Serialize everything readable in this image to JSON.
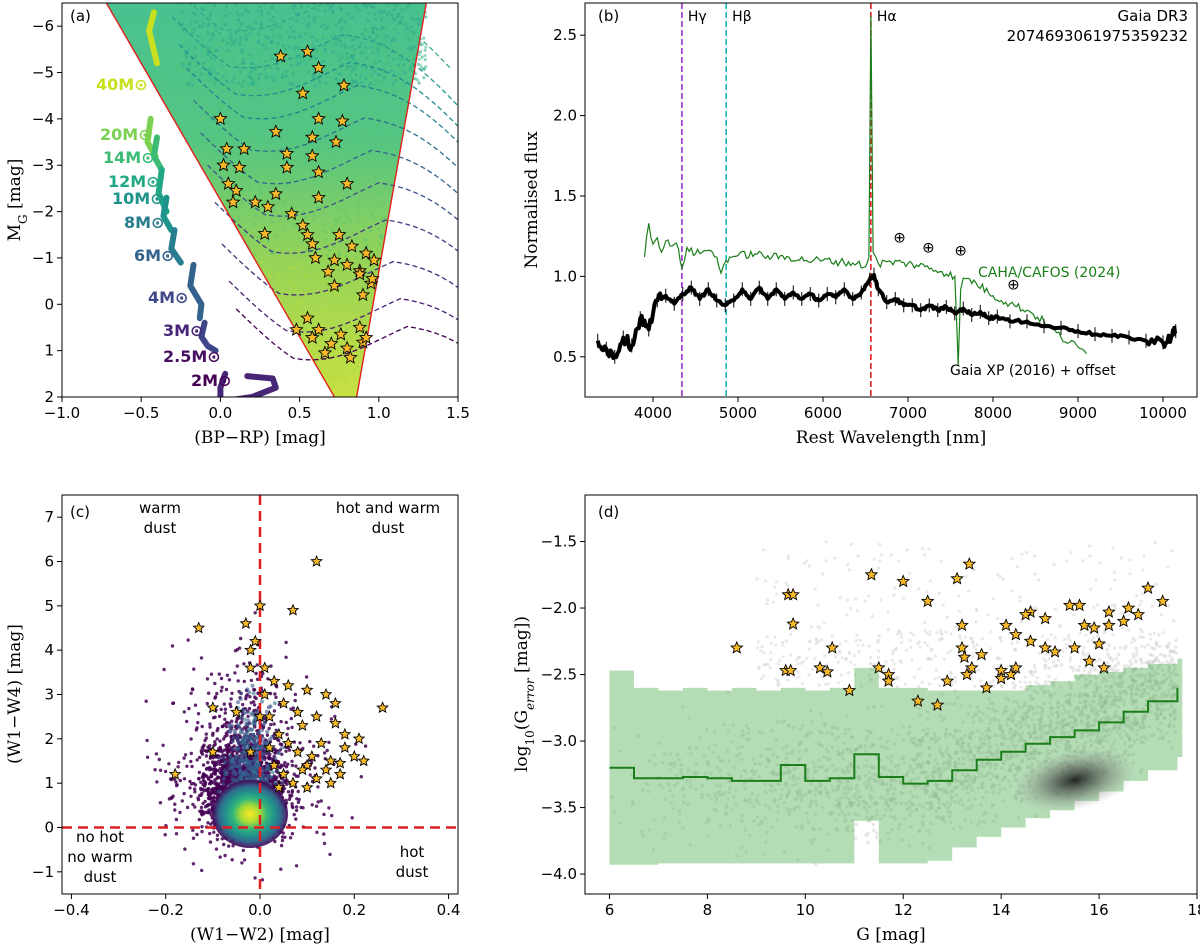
{
  "chart_data": [
    {
      "panel": "(a)",
      "type": "scatter",
      "xlabel": "(BP−RP) [mag]",
      "ylabel": "M_G [mag]",
      "xlim": [
        -1.0,
        1.5
      ],
      "ylim": [
        2,
        -6.5
      ],
      "xticks": [
        -1.0,
        -0.5,
        0.0,
        0.5,
        1.0,
        1.5
      ],
      "xtick_labels": [
        "−1.0",
        "−0.5",
        "0.0",
        "0.5",
        "1.0",
        "1.5"
      ],
      "yticks": [
        -6,
        -5,
        -4,
        -3,
        -2,
        -1,
        0,
        1,
        2
      ],
      "ytick_labels": [
        "−6",
        "−5",
        "−4",
        "−3",
        "−2",
        "−1",
        "0",
        "1",
        "2"
      ],
      "track_labels": [
        "40M⊙",
        "20M⊙",
        "14M⊙",
        "12M⊙",
        "10M⊙",
        "8M⊙",
        "6M⊙",
        "4M⊙",
        "3M⊙",
        "2.5M⊙",
        "2M⊙"
      ],
      "cut_lines": [
        {
          "name": "left boundary",
          "x": [
            -0.72,
            0.72
          ],
          "y": [
            -6.5,
            2.0
          ]
        },
        {
          "name": "right boundary",
          "x": [
            1.3,
            0.86
          ],
          "y": [
            -6.5,
            2.0
          ]
        }
      ],
      "stars": [
        [
          0.55,
          -5.45
        ],
        [
          0.62,
          -5.1
        ],
        [
          0.38,
          -5.35
        ],
        [
          0.78,
          -4.72
        ],
        [
          0.52,
          -4.55
        ],
        [
          0.62,
          -4.0
        ],
        [
          0.77,
          -3.95
        ],
        [
          0.58,
          -3.6
        ],
        [
          0.35,
          -3.72
        ],
        [
          0.42,
          -3.25
        ],
        [
          0.73,
          -3.5
        ],
        [
          0.58,
          -3.2
        ],
        [
          0.42,
          -2.95
        ],
        [
          0.62,
          -2.85
        ],
        [
          0.8,
          -2.6
        ],
        [
          0.35,
          -2.38
        ],
        [
          0.22,
          -2.2
        ],
        [
          0.3,
          -2.1
        ],
        [
          0.45,
          -1.95
        ],
        [
          0.52,
          -1.7
        ],
        [
          0.28,
          -1.52
        ],
        [
          0.58,
          -1.3
        ],
        [
          0.75,
          -1.5
        ],
        [
          0.83,
          -1.25
        ],
        [
          0.6,
          -1.0
        ],
        [
          0.72,
          -0.95
        ],
        [
          0.8,
          -0.85
        ],
        [
          0.68,
          -0.7
        ],
        [
          0.88,
          -0.72
        ],
        [
          0.95,
          -0.45
        ],
        [
          0.9,
          -0.2
        ],
        [
          0.72,
          -0.4
        ],
        [
          0.55,
          0.3
        ],
        [
          0.62,
          0.55
        ],
        [
          0.76,
          0.65
        ],
        [
          0.88,
          0.5
        ],
        [
          0.7,
          0.85
        ],
        [
          0.8,
          0.95
        ],
        [
          0.9,
          0.82
        ],
        [
          0.58,
          0.72
        ],
        [
          0.48,
          0.55
        ],
        [
          0.66,
          1.05
        ],
        [
          0.82,
          1.15
        ],
        [
          0.92,
          0.72
        ],
        [
          0.02,
          -3.0
        ],
        [
          0.05,
          -2.6
        ],
        [
          0.1,
          -2.45
        ],
        [
          0.08,
          -2.2
        ],
        [
          0.04,
          -3.35
        ],
        [
          0.0,
          -4.0
        ],
        [
          0.15,
          -3.35
        ],
        [
          0.12,
          -2.95
        ],
        [
          0.92,
          -1.1
        ],
        [
          0.97,
          -0.95
        ],
        [
          0.96,
          -0.55
        ],
        [
          0.88,
          -0.65
        ],
        [
          0.62,
          -2.3
        ],
        [
          0.55,
          -1.5
        ]
      ]
    },
    {
      "panel": "(b)",
      "type": "line",
      "title": "Gaia DR3",
      "subtitle": "2074693061975359232",
      "xlabel": "Rest Wavelength [nm]",
      "ylabel": "Normalised flux",
      "xlim": [
        3200,
        10400
      ],
      "ylim": [
        0.25,
        2.7
      ],
      "xticks": [
        4000,
        5000,
        6000,
        7000,
        8000,
        9000,
        10000
      ],
      "yticks": [
        0.5,
        1.0,
        1.5,
        2.0,
        2.5
      ],
      "ytick_labels": [
        "0.5",
        "1.0",
        "1.5",
        "2.0",
        "2.5"
      ],
      "lines_marked": [
        {
          "label": "Hγ",
          "x": 4340,
          "color": "#9b30c9"
        },
        {
          "label": "Hβ",
          "x": 4861,
          "color": "#20b0c0"
        },
        {
          "label": "Hα",
          "x": 6563,
          "color": "#e02020"
        }
      ],
      "telluric_markers": [
        [
          6900,
          1.21
        ],
        [
          7240,
          1.15
        ],
        [
          7620,
          1.13
        ],
        [
          8240,
          0.92
        ]
      ],
      "telluric_symbol": "⊕",
      "series": [
        {
          "name": "CAHA/CAFOS (2024)",
          "color": "#1a7f1a",
          "x": [
            3900,
            3950,
            4000,
            4050,
            4100,
            4150,
            4200,
            4250,
            4300,
            4340,
            4400,
            4500,
            4600,
            4700,
            4750,
            4800,
            4861,
            4900,
            5000,
            5200,
            5400,
            5600,
            5800,
            6000,
            6200,
            6400,
            6500,
            6540,
            6563,
            6590,
            6650,
            6800,
            7000,
            7200,
            7400,
            7550,
            7590,
            7620,
            7650,
            7800,
            8000,
            8200,
            8400,
            8600,
            8800,
            9000,
            9100
          ],
          "y": [
            1.12,
            1.33,
            1.2,
            1.24,
            1.15,
            1.22,
            1.19,
            1.2,
            1.17,
            1.05,
            1.18,
            1.14,
            1.16,
            1.15,
            1.12,
            1.02,
            1.1,
            1.12,
            1.13,
            1.14,
            1.12,
            1.12,
            1.1,
            1.1,
            1.09,
            1.08,
            1.06,
            1.12,
            2.62,
            1.15,
            1.08,
            1.09,
            1.08,
            1.06,
            1.03,
            1.0,
            0.45,
            0.92,
            0.99,
            0.96,
            0.88,
            0.83,
            0.79,
            0.72,
            0.62,
            0.56,
            0.52
          ]
        },
        {
          "name": "Gaia XP (2016) + offset",
          "color": "#000000",
          "x": [
            3350,
            3450,
            3550,
            3650,
            3750,
            3850,
            3950,
            4050,
            4150,
            4250,
            4350,
            4450,
            4550,
            4650,
            4750,
            4850,
            4950,
            5050,
            5150,
            5250,
            5350,
            5450,
            5550,
            5650,
            5750,
            5850,
            5950,
            6050,
            6150,
            6250,
            6350,
            6450,
            6550,
            6600,
            6650,
            6750,
            6850,
            6950,
            7050,
            7150,
            7250,
            7350,
            7450,
            7550,
            7650,
            7750,
            7850,
            7950,
            8050,
            8200,
            8400,
            8600,
            8800,
            9000,
            9200,
            9400,
            9600,
            9800,
            10000,
            10100,
            10150
          ],
          "y": [
            0.6,
            0.55,
            0.5,
            0.62,
            0.57,
            0.74,
            0.67,
            0.85,
            0.88,
            0.83,
            0.89,
            0.93,
            0.86,
            0.92,
            0.85,
            0.82,
            0.85,
            0.92,
            0.86,
            0.93,
            0.86,
            0.92,
            0.86,
            0.9,
            0.86,
            0.89,
            0.85,
            0.89,
            0.87,
            0.92,
            0.86,
            0.9,
            0.98,
            1.01,
            0.92,
            0.84,
            0.86,
            0.82,
            0.82,
            0.79,
            0.82,
            0.79,
            0.81,
            0.77,
            0.8,
            0.76,
            0.78,
            0.74,
            0.75,
            0.72,
            0.72,
            0.69,
            0.68,
            0.66,
            0.64,
            0.63,
            0.62,
            0.6,
            0.59,
            0.63,
            0.66
          ]
        }
      ]
    },
    {
      "panel": "(c)",
      "type": "scatter",
      "xlabel": "(W1−W2) [mag]",
      "ylabel": "(W1−W4) [mag]",
      "xlim": [
        -0.42,
        0.42
      ],
      "ylim": [
        -1.5,
        7.5
      ],
      "xticks": [
        -0.4,
        -0.2,
        0.0,
        0.2,
        0.4
      ],
      "xtick_labels": [
        "−0.4",
        "−0.2",
        "0.0",
        "0.2",
        "0.4"
      ],
      "yticks": [
        -1,
        0,
        1,
        2,
        3,
        4,
        5,
        6,
        7
      ],
      "ytick_labels": [
        "−1",
        "0",
        "1",
        "2",
        "3",
        "4",
        "5",
        "6",
        "7"
      ],
      "region_labels": {
        "top_left": [
          "warm",
          "dust"
        ],
        "top_right": [
          "hot and warm",
          "dust"
        ],
        "bottom_left": [
          "no hot",
          "no warm",
          "dust"
        ],
        "bottom_right": [
          "hot",
          "dust"
        ]
      },
      "dividers": {
        "x": 0.0,
        "y": 0.0,
        "color": "#e02020"
      },
      "stars": [
        [
          -0.13,
          4.5
        ],
        [
          0.12,
          6.0
        ],
        [
          0.0,
          5.0
        ],
        [
          0.07,
          4.9
        ],
        [
          -0.02,
          4.0
        ],
        [
          0.01,
          3.6
        ],
        [
          0.03,
          3.3
        ],
        [
          0.06,
          3.2
        ],
        [
          0.1,
          3.1
        ],
        [
          0.14,
          3.0
        ],
        [
          0.16,
          2.8
        ],
        [
          0.05,
          2.8
        ],
        [
          0.08,
          2.6
        ],
        [
          0.12,
          2.5
        ],
        [
          0.16,
          2.35
        ],
        [
          0.26,
          2.7
        ],
        [
          0.21,
          2.0
        ],
        [
          0.18,
          1.8
        ],
        [
          0.2,
          1.6
        ],
        [
          0.15,
          1.5
        ],
        [
          0.14,
          1.3
        ],
        [
          0.17,
          1.2
        ],
        [
          0.12,
          1.1
        ],
        [
          0.1,
          1.4
        ],
        [
          0.08,
          1.7
        ],
        [
          0.06,
          1.9
        ],
        [
          0.04,
          2.1
        ],
        [
          0.02,
          2.5
        ],
        [
          0.0,
          2.5
        ],
        [
          0.02,
          1.8
        ],
        [
          0.03,
          1.4
        ],
        [
          0.05,
          1.2
        ],
        [
          0.07,
          1.0
        ],
        [
          0.09,
          1.3
        ],
        [
          0.11,
          1.6
        ],
        [
          0.13,
          1.9
        ],
        [
          -0.02,
          1.7
        ],
        [
          -0.05,
          2.6
        ],
        [
          -0.1,
          2.7
        ],
        [
          -0.1,
          1.7
        ],
        [
          -0.18,
          1.2
        ],
        [
          -0.02,
          3.6
        ],
        [
          -0.01,
          4.2
        ],
        [
          0.15,
          1.0
        ],
        [
          0.17,
          1.45
        ],
        [
          0.18,
          2.1
        ],
        [
          0.22,
          1.5
        ],
        [
          0.09,
          2.3
        ],
        [
          0.04,
          0.9
        ],
        [
          0.1,
          0.9
        ],
        [
          -0.03,
          4.6
        ],
        [
          0.01,
          3.0
        ]
      ]
    },
    {
      "panel": "(d)",
      "type": "scatter",
      "xlabel": "G [mag]",
      "ylabel": "log10(G_error [mag])",
      "xlim": [
        5.5,
        18.0
      ],
      "ylim": [
        -4.15,
        -1.15
      ],
      "xticks": [
        6,
        8,
        10,
        12,
        14,
        16,
        18
      ],
      "yticks": [
        -4.0,
        -3.5,
        -3.0,
        -2.5,
        -2.0,
        -1.5
      ],
      "ytick_labels": [
        "−4.0",
        "−3.5",
        "−3.0",
        "−2.5",
        "−2.0",
        "−1.5"
      ],
      "median_line": {
        "color": "#1a7f1a",
        "x": [
          6.0,
          6.5,
          7.0,
          7.5,
          8.0,
          8.5,
          9.0,
          9.5,
          10.0,
          10.5,
          11.0,
          11.5,
          12.0,
          12.5,
          13.0,
          13.5,
          14.0,
          14.5,
          15.0,
          15.5,
          16.0,
          16.5,
          17.0,
          17.6
        ],
        "y": [
          -3.2,
          -3.28,
          -3.28,
          -3.27,
          -3.28,
          -3.3,
          -3.3,
          -3.18,
          -3.3,
          -3.28,
          -3.1,
          -3.27,
          -3.32,
          -3.3,
          -3.22,
          -3.14,
          -3.08,
          -3.02,
          -2.97,
          -2.92,
          -2.86,
          -2.78,
          -2.7,
          -2.6
        ]
      },
      "band": {
        "x": [
          6.0,
          6.5,
          7.0,
          7.5,
          8.0,
          8.5,
          9.0,
          9.5,
          10.0,
          10.5,
          11.0,
          11.5,
          12.0,
          12.5,
          13.0,
          13.5,
          14.0,
          14.5,
          15.0,
          15.5,
          16.0,
          16.5,
          17.0,
          17.6
        ],
        "lower": [
          -3.93,
          -3.93,
          -3.92,
          -3.92,
          -3.92,
          -3.92,
          -3.92,
          -3.92,
          -3.92,
          -3.92,
          -3.6,
          -3.92,
          -3.92,
          -3.9,
          -3.8,
          -3.72,
          -3.65,
          -3.58,
          -3.52,
          -3.45,
          -3.38,
          -3.3,
          -3.22,
          -3.12
        ],
        "upper": [
          -2.47,
          -2.6,
          -2.62,
          -2.6,
          -2.62,
          -2.6,
          -2.62,
          -2.6,
          -2.62,
          -2.6,
          -2.45,
          -2.6,
          -2.6,
          -2.62,
          -2.62,
          -2.62,
          -2.62,
          -2.58,
          -2.55,
          -2.5,
          -2.48,
          -2.45,
          -2.42,
          -2.38
        ]
      },
      "stars": [
        [
          8.6,
          -2.3
        ],
        [
          9.6,
          -2.47
        ],
        [
          9.7,
          -2.47
        ],
        [
          9.65,
          -1.9
        ],
        [
          9.75,
          -1.9
        ],
        [
          9.75,
          -2.12
        ],
        [
          10.3,
          -2.45
        ],
        [
          10.45,
          -2.48
        ],
        [
          10.55,
          -2.3
        ],
        [
          10.9,
          -2.62
        ],
        [
          11.35,
          -1.75
        ],
        [
          11.5,
          -2.45
        ],
        [
          11.7,
          -2.5
        ],
        [
          11.7,
          -2.55
        ],
        [
          12.0,
          -1.8
        ],
        [
          12.3,
          -2.7
        ],
        [
          12.7,
          -2.73
        ],
        [
          12.5,
          -1.95
        ],
        [
          13.1,
          -1.78
        ],
        [
          13.35,
          -1.67
        ],
        [
          13.2,
          -2.13
        ],
        [
          13.2,
          -2.3
        ],
        [
          13.25,
          -2.37
        ],
        [
          13.4,
          -2.45
        ],
        [
          13.3,
          -2.5
        ],
        [
          13.6,
          -2.35
        ],
        [
          14.0,
          -2.47
        ],
        [
          14.0,
          -2.53
        ],
        [
          14.2,
          -2.5
        ],
        [
          14.3,
          -2.45
        ],
        [
          14.1,
          -2.13
        ],
        [
          14.3,
          -2.2
        ],
        [
          14.6,
          -2.25
        ],
        [
          14.9,
          -2.08
        ],
        [
          14.6,
          -2.03
        ],
        [
          14.5,
          -2.05
        ],
        [
          14.9,
          -2.3
        ],
        [
          15.1,
          -2.33
        ],
        [
          15.4,
          -1.98
        ],
        [
          15.6,
          -1.98
        ],
        [
          15.7,
          -2.13
        ],
        [
          15.9,
          -2.15
        ],
        [
          15.5,
          -2.3
        ],
        [
          15.8,
          -2.4
        ],
        [
          16.0,
          -2.27
        ],
        [
          16.2,
          -2.13
        ],
        [
          16.2,
          -2.03
        ],
        [
          16.6,
          -2.0
        ],
        [
          16.8,
          -2.05
        ],
        [
          17.0,
          -1.85
        ],
        [
          17.3,
          -1.95
        ],
        [
          16.1,
          -2.45
        ],
        [
          16.5,
          -2.1
        ],
        [
          12.9,
          -2.55
        ],
        [
          13.7,
          -2.6
        ]
      ]
    }
  ]
}
